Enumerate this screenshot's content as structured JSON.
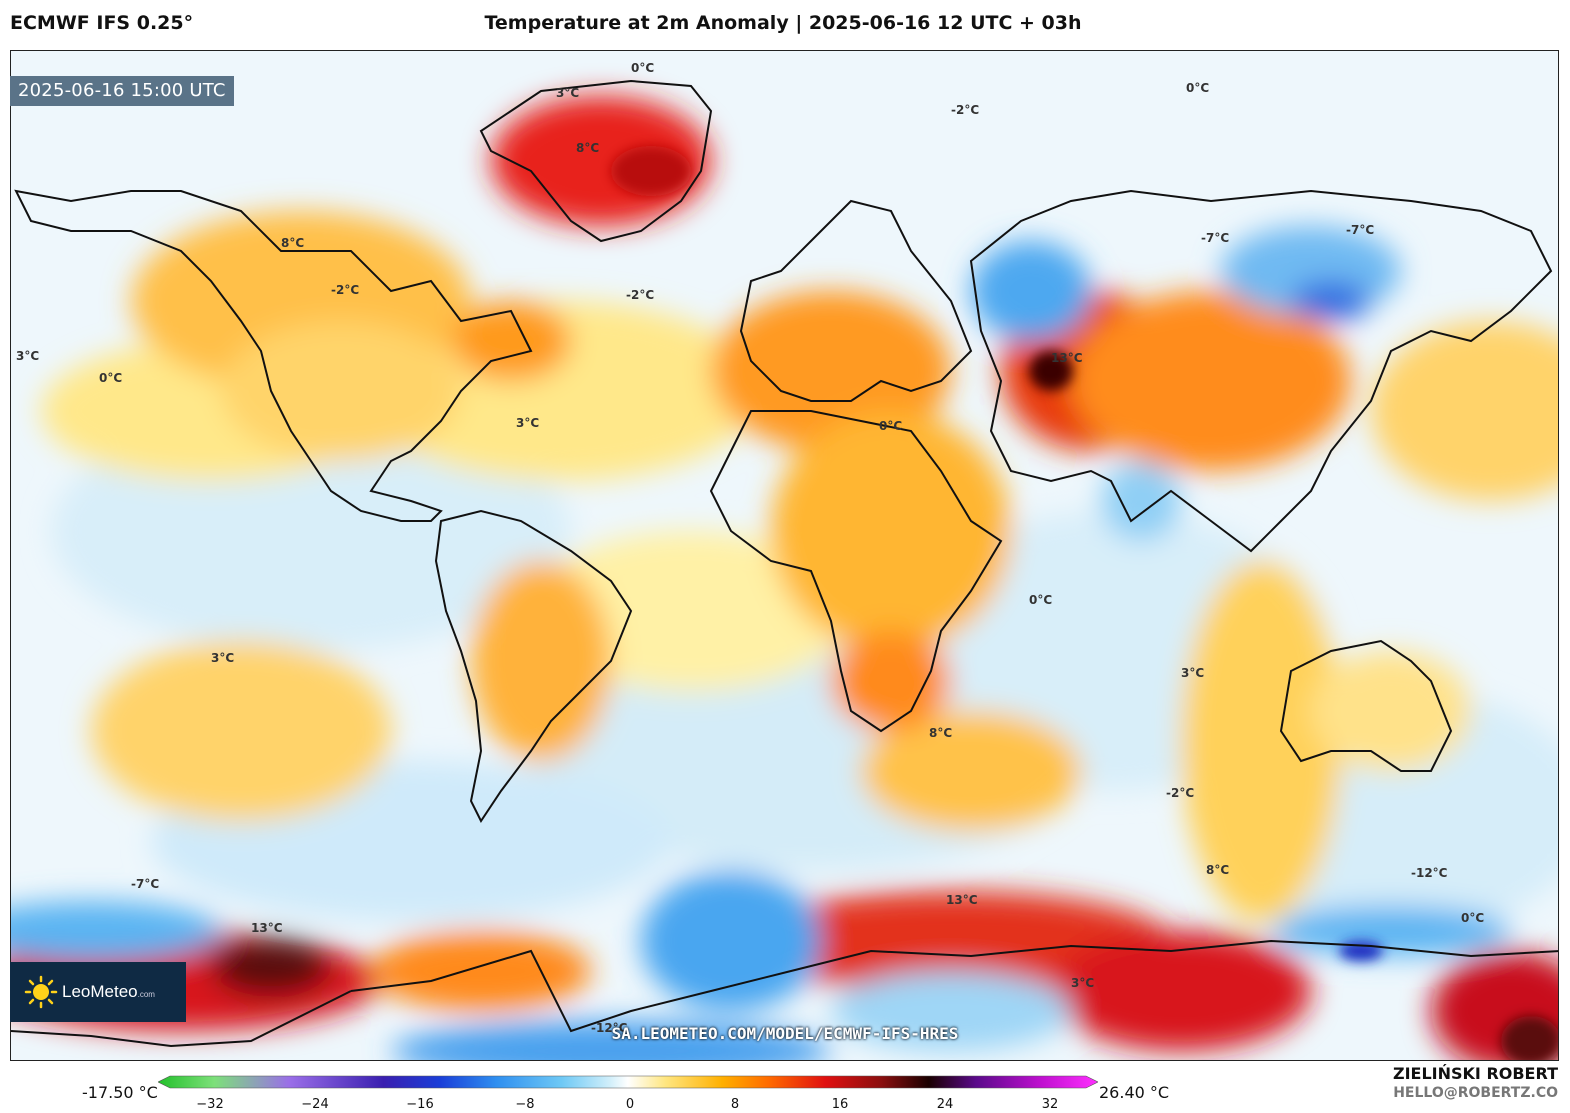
{
  "header": {
    "model": "ECMWF IFS 0.25°",
    "title": "Temperature at 2m Anomaly | 2025-06-16 12 UTC + 03h"
  },
  "valid_time": "2025-06-16 15:00 UTC",
  "logo": {
    "text": "LeoMeteo",
    "suffix": ".com"
  },
  "source_url": "SA.LEOMETEO.COM/MODEL/ECMWF-IFS-HRES",
  "colorbar": {
    "min_label": "-17.50 °C",
    "max_label": "26.40 °C",
    "ticks": [
      "−32",
      "−24",
      "−16",
      "−8",
      "0",
      "8",
      "16",
      "24",
      "32"
    ],
    "stops": [
      "#22c02a",
      "#7de07a",
      "#9a6ee8",
      "#3a1fb0",
      "#1a3ed8",
      "#2f8ff0",
      "#6fc9f5",
      "#cfeefa",
      "#ffffff",
      "#ffe680",
      "#ffb000",
      "#ff6a00",
      "#e01010",
      "#8a0f0f",
      "#1a0000",
      "#5a0a8a",
      "#c010d0",
      "#ff30ff"
    ]
  },
  "author": {
    "name": "ZIELIŃSKI ROBERT",
    "email": "HELLO@ROBERTZ.CO"
  },
  "isotherm_labels": [
    "0°C",
    "3°C",
    "8°C",
    "-2°C",
    "-7°C",
    "13°C",
    "-12°C",
    "0°C",
    "3°C",
    "8°C",
    "-2°C",
    "-7°C",
    "13°C",
    "3°C",
    "0°C",
    "8°C",
    "-2°C",
    "0°C",
    "3°C",
    "-7°C",
    "-12°C",
    "13°C",
    "0°C",
    "8°C",
    "3°C",
    "-2°C",
    "0°C",
    "3°C"
  ]
}
